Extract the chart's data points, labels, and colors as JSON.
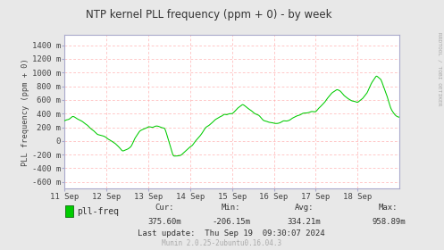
{
  "title": "NTP kernel PLL frequency (ppm + 0) - by week",
  "ylabel": "PLL frequency (ppm + 0)",
  "watermark": "Munin 2.0.25-2ubuntu0.16.04.3",
  "right_label": "RRDTOOL / TOBI OETIKER",
  "legend_label": "pll-freq",
  "cur": "375.60m",
  "min_val": "-206.15m",
  "avg": "334.21m",
  "max_val": "958.89m",
  "last_update": "Last update:  Thu Sep 19  09:30:07 2024",
  "ylim": [
    -700,
    1550
  ],
  "yticks": [
    -600,
    -400,
    -200,
    0,
    200,
    400,
    600,
    800,
    1000,
    1200,
    1400
  ],
  "ytick_labels": [
    "-600 m",
    "-400 m",
    "-200 m",
    "0",
    "200 m",
    "400 m",
    "600 m",
    "800 m",
    "1000 m",
    "1200 m",
    "1400 m"
  ],
  "bg_color": "#e8e8e8",
  "plot_bg_color": "#ffffff",
  "grid_color_pink": "#ffaaaa",
  "grid_color_blue": "#ccccdd",
  "line_color": "#00cc00",
  "border_color": "#aaaacc",
  "x_day_labels": [
    "11 Sep",
    "12 Sep",
    "13 Sep",
    "14 Sep",
    "15 Sep",
    "16 Sep",
    "17 Sep",
    "18 Sep"
  ]
}
